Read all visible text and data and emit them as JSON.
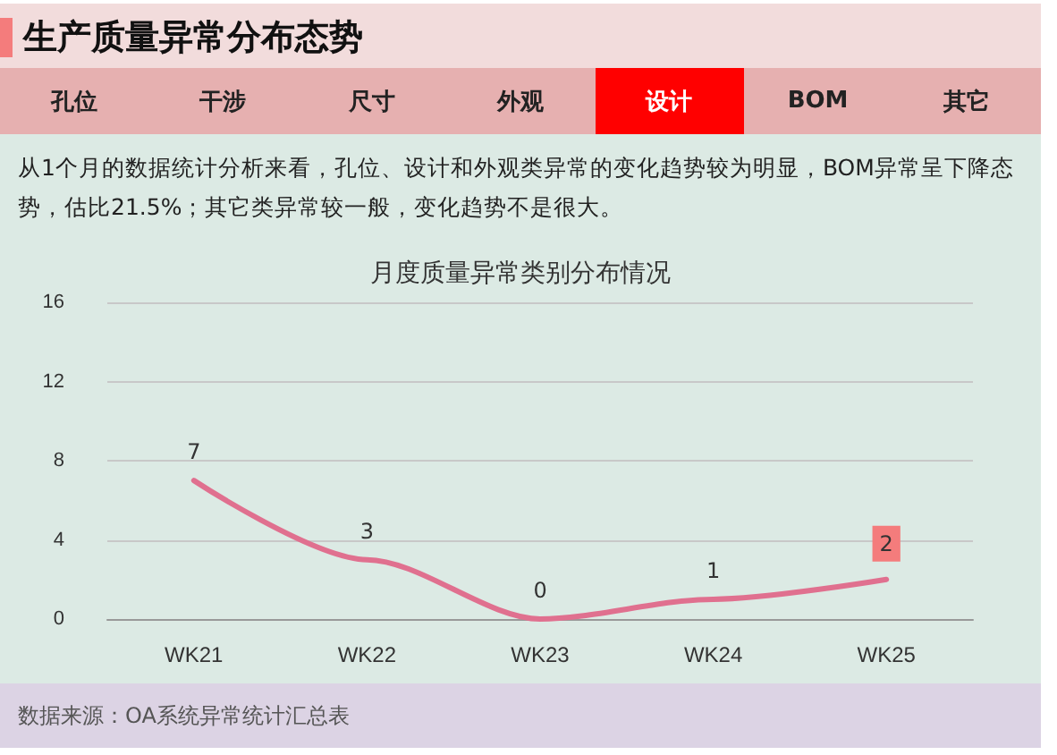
{
  "chart_data": {
    "type": "line",
    "title": "生产质量异常分布态势",
    "subtitle": "月度质量异常类别分布情况",
    "annotations": [
      "孔位",
      "干涉",
      "尺寸",
      "外观",
      "设计",
      "BOM",
      "其它",
      "从1个月的数据统计分析来看，孔位、设计和外观类异常的变化趋势较为明显，BOM异常呈下降态势，估比21.5%；其它类异常较一般，变化趋势不是很大。",
      "数据来源：OA系统异常统计汇总表"
    ],
    "categories": [
      "WK21",
      "WK22",
      "WK23",
      "WK24",
      "WK25"
    ],
    "series": [
      {
        "color": "#e0708f",
        "values": [
          7,
          3,
          0,
          1,
          2
        ]
      }
    ],
    "ylim": [
      0,
      16
    ],
    "yticks": [
      0,
      4,
      8,
      12,
      16
    ],
    "grid": "y",
    "marker": "none",
    "line_style": "solid",
    "data_labels": true
  }
}
